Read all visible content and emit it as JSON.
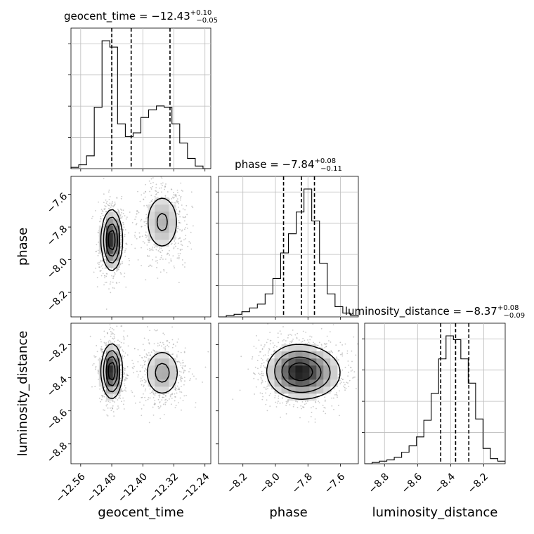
{
  "chart_data": {
    "type": "corner",
    "parameters": [
      "geocent_time",
      "phase",
      "luminosity_distance"
    ],
    "axis_labels": {
      "x": [
        "geocent_time",
        "phase",
        "luminosity_distance"
      ],
      "y": [
        "",
        "phase",
        "luminosity_distance"
      ]
    },
    "titles": [
      {
        "name": "geocent_time",
        "median": "−12.43",
        "plus": "+0.10",
        "minus": "−0.05"
      },
      {
        "name": "phase",
        "median": "−7.84",
        "plus": "+0.08",
        "minus": "−0.11"
      },
      {
        "name": "luminosity_distance",
        "median": "−8.37",
        "plus": "+0.08",
        "minus": "−0.09"
      }
    ],
    "ranges": {
      "geocent_time": [
        -12.585,
        -12.225
      ],
      "phase": [
        -8.35,
        -7.49
      ],
      "luminosity_distance": [
        -8.92,
        -8.07
      ]
    },
    "ticks": {
      "geocent_time": {
        "values": [
          -12.56,
          -12.48,
          -12.4,
          -12.32,
          -12.24
        ],
        "labels": [
          "−12.56",
          "−12.48",
          "−12.40",
          "−12.32",
          "−12.24"
        ]
      },
      "phase": {
        "values": [
          -8.2,
          -8.0,
          -7.8,
          -7.6
        ],
        "labels": [
          "−8.2",
          "−8.0",
          "−7.8",
          "−7.6"
        ]
      },
      "luminosity_distance": {
        "values": [
          -8.8,
          -8.6,
          -8.4,
          -8.2
        ],
        "labels": [
          "−8.8",
          "−8.6",
          "−8.4",
          "−8.2"
        ]
      }
    },
    "quantiles": {
      "geocent_time": [
        -12.48,
        -12.43,
        -12.33
      ],
      "phase": [
        -7.95,
        -7.84,
        -7.76
      ],
      "luminosity_distance": [
        -8.46,
        -8.37,
        -8.29
      ]
    },
    "histograms": {
      "geocent_time": [
        0.01,
        0.03,
        0.1,
        0.48,
        1.0,
        0.95,
        0.35,
        0.25,
        0.28,
        0.4,
        0.46,
        0.49,
        0.48,
        0.35,
        0.2,
        0.08,
        0.02,
        0.0
      ],
      "phase": [
        0.0,
        0.01,
        0.02,
        0.04,
        0.07,
        0.1,
        0.18,
        0.3,
        0.5,
        0.65,
        0.82,
        1.0,
        0.75,
        0.42,
        0.18,
        0.08,
        0.03,
        0.01
      ],
      "luminosity_distance": [
        0.0,
        0.01,
        0.02,
        0.03,
        0.05,
        0.09,
        0.14,
        0.21,
        0.34,
        0.55,
        0.82,
        1.0,
        0.97,
        0.82,
        0.63,
        0.35,
        0.12,
        0.04,
        0.02
      ]
    },
    "modes": [
      {
        "weight": 0.58,
        "geocent_time": -12.48,
        "phase": -7.88,
        "luminosity_distance": -8.36,
        "sd_geocent_time": 0.013,
        "sd_phase": 0.09,
        "sd_luminosity_distance": 0.08
      },
      {
        "weight": 0.42,
        "geocent_time": -12.35,
        "phase": -7.77,
        "luminosity_distance": -8.37,
        "sd_geocent_time": 0.025,
        "sd_phase": 0.1,
        "sd_luminosity_distance": 0.08
      }
    ],
    "grid": true
  }
}
